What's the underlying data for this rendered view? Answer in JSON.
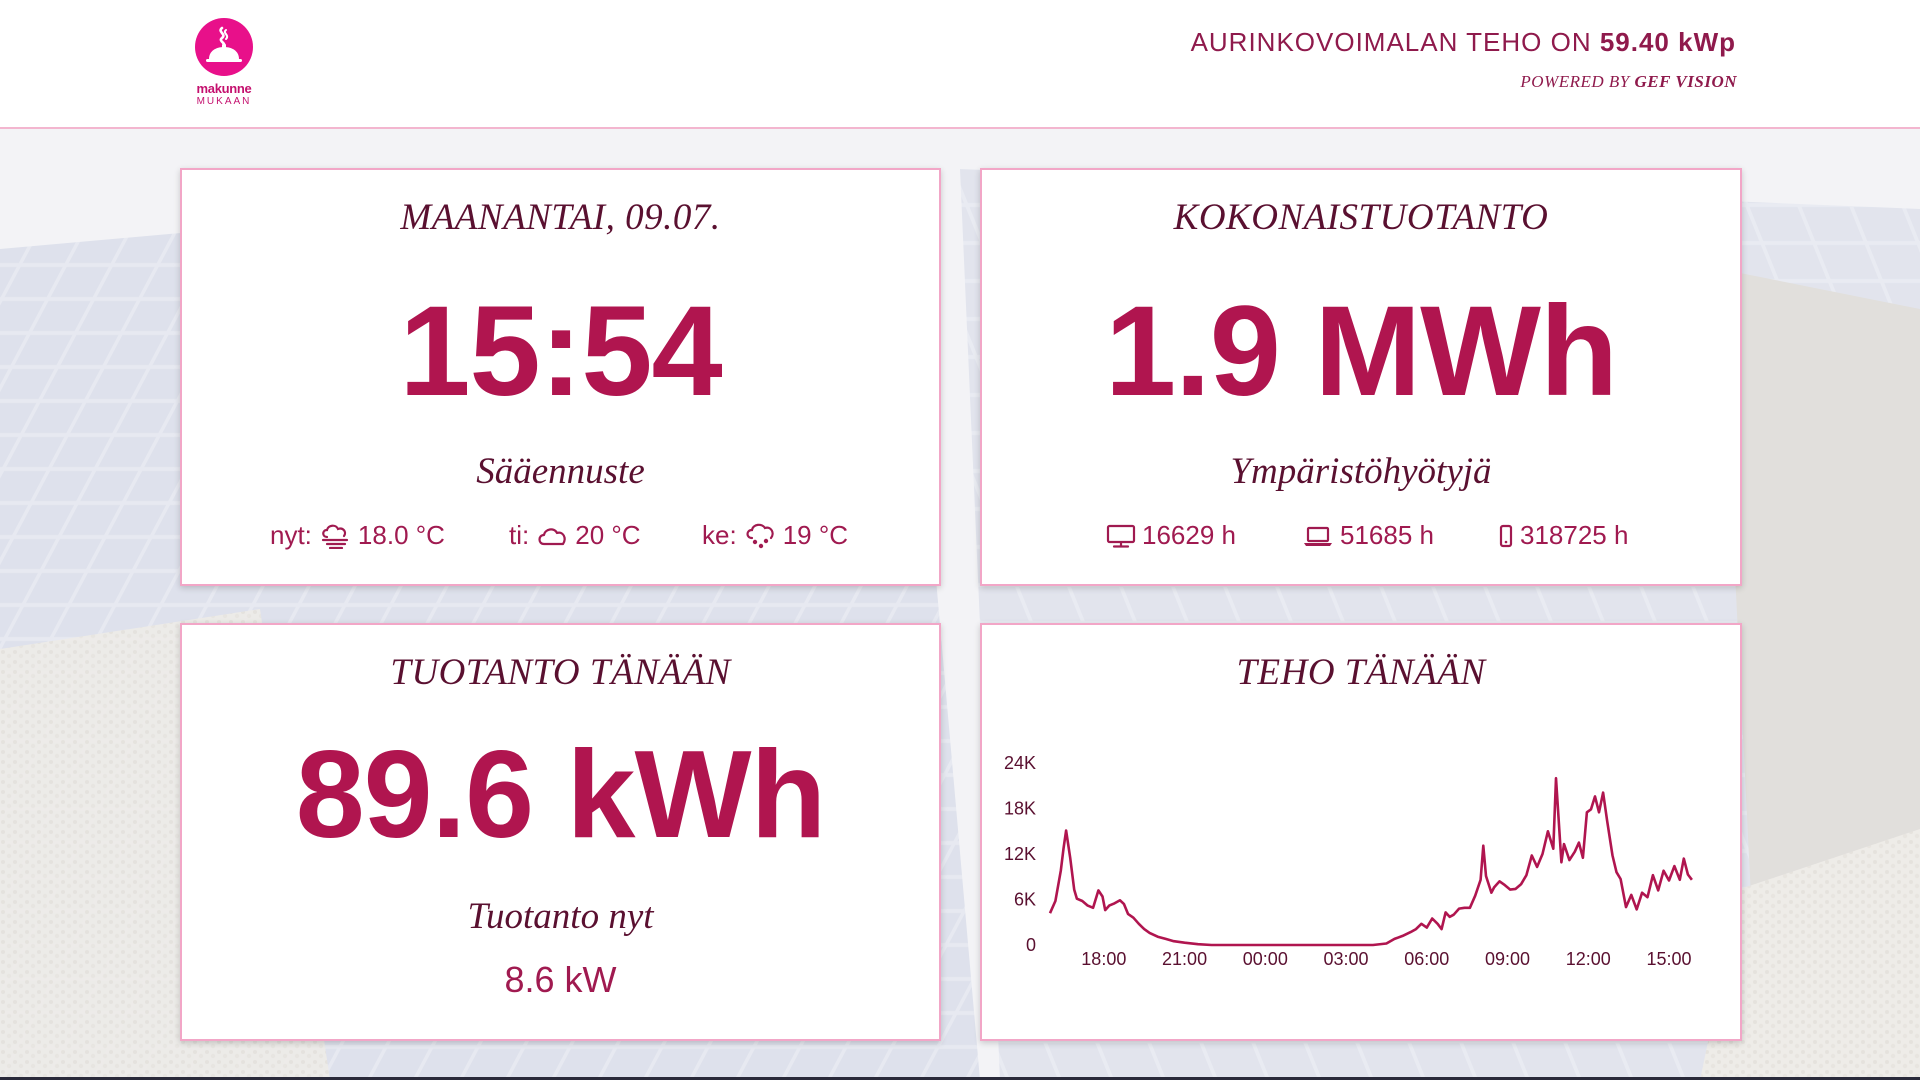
{
  "header": {
    "logo_name": "makunne",
    "logo_sub": "MUKAAN",
    "plant_label": "AURINKOVOIMALAN TEHO ON",
    "plant_value": "59.40 kWp",
    "powered_label": "POWERED BY",
    "powered_brand": "GEF VISION"
  },
  "clock_card": {
    "title": "MAANANTAI, 09.07.",
    "time": "15:54",
    "subtitle": "Sääennuste",
    "forecast": [
      {
        "label": "nyt:",
        "icon": "cloud-fog-icon",
        "value": "18.0 °C"
      },
      {
        "label": "ti:",
        "icon": "cloud-icon",
        "value": "20 °C"
      },
      {
        "label": "ke:",
        "icon": "cloud-rain-icon",
        "value": "19 °C"
      }
    ]
  },
  "total_card": {
    "title": "KOKONAISTUOTANTO",
    "value": "1.9 MWh",
    "subtitle": "Ympäristöhyötyjä",
    "benefits": [
      {
        "icon": "desktop-icon",
        "value": "16629 h"
      },
      {
        "icon": "laptop-icon",
        "value": "51685 h"
      },
      {
        "icon": "smartphone-icon",
        "value": "318725 h"
      }
    ]
  },
  "today_card": {
    "title": "TUOTANTO TÄNÄÄN",
    "value": "89.6 kWh",
    "subtitle": "Tuotanto nyt",
    "now_value": "8.6 kW"
  },
  "power_card": {
    "title": "TEHO TÄNÄÄN"
  },
  "chart_data": {
    "type": "line",
    "title": "TEHO TÄNÄÄN",
    "xlabel": "",
    "ylabel": "",
    "ylim": [
      0,
      24000
    ],
    "xlim": [
      16.0,
      40.3
    ],
    "yticks": [
      0,
      6000,
      12000,
      18000,
      24000
    ],
    "ytick_labels": [
      "0",
      "6K",
      "12K",
      "18K",
      "24K"
    ],
    "xticks": [
      18,
      21,
      24,
      27,
      30,
      33,
      36,
      39
    ],
    "xtick_labels": [
      "18:00",
      "21:00",
      "00:00",
      "03:00",
      "06:00",
      "09:00",
      "12:00",
      "15:00"
    ],
    "color": "#b0154f",
    "grid": false,
    "series": [
      {
        "name": "",
        "x": [
          16.0,
          16.2,
          16.4,
          16.5,
          16.6,
          16.75,
          16.9,
          17.0,
          17.2,
          17.4,
          17.6,
          17.8,
          17.95,
          18.05,
          18.2,
          18.4,
          18.6,
          18.75,
          18.9,
          19.1,
          19.3,
          19.5,
          19.7,
          20.0,
          20.3,
          20.6,
          21.0,
          21.5,
          22.0,
          23.0,
          24.0,
          25.0,
          26.0,
          27.0,
          28.0,
          28.5,
          28.8,
          29.1,
          29.4,
          29.6,
          29.8,
          30.0,
          30.2,
          30.4,
          30.55,
          30.7,
          30.85,
          31.0,
          31.2,
          31.4,
          31.6,
          31.8,
          32.0,
          32.1,
          32.2,
          32.4,
          32.5,
          32.7,
          32.9,
          33.1,
          33.3,
          33.5,
          33.7,
          33.9,
          34.1,
          34.3,
          34.5,
          34.7,
          34.8,
          35.0,
          35.1,
          35.3,
          35.5,
          35.65,
          35.8,
          35.95,
          36.1,
          36.25,
          36.4,
          36.55,
          36.7,
          36.9,
          37.05,
          37.2,
          37.4,
          37.6,
          37.8,
          38.0,
          38.2,
          38.4,
          38.6,
          38.8,
          39.0,
          39.2,
          39.4,
          39.55,
          39.7,
          39.85
        ],
        "y": [
          4200,
          5800,
          9800,
          12700,
          15100,
          11500,
          7300,
          6100,
          5800,
          5200,
          4900,
          7200,
          6400,
          4600,
          5200,
          5500,
          5900,
          5400,
          4100,
          3600,
          2800,
          2100,
          1600,
          1100,
          800,
          500,
          300,
          100,
          0,
          0,
          0,
          0,
          0,
          0,
          0,
          200,
          800,
          1200,
          1700,
          2100,
          2800,
          2300,
          3500,
          2800,
          2100,
          4300,
          3700,
          4000,
          4800,
          4900,
          4900,
          6500,
          8600,
          13100,
          9100,
          6900,
          7600,
          8400,
          7900,
          7300,
          7400,
          8000,
          9200,
          11800,
          10300,
          12000,
          15000,
          12700,
          22000,
          10900,
          13300,
          11200,
          12300,
          13500,
          11500,
          17500,
          17900,
          19600,
          17500,
          20100,
          16400,
          11800,
          9600,
          8700,
          5000,
          6600,
          4700,
          6900,
          6300,
          9200,
          7200,
          9800,
          8500,
          10400,
          8600,
          11400,
          9300,
          8600
        ]
      }
    ]
  }
}
